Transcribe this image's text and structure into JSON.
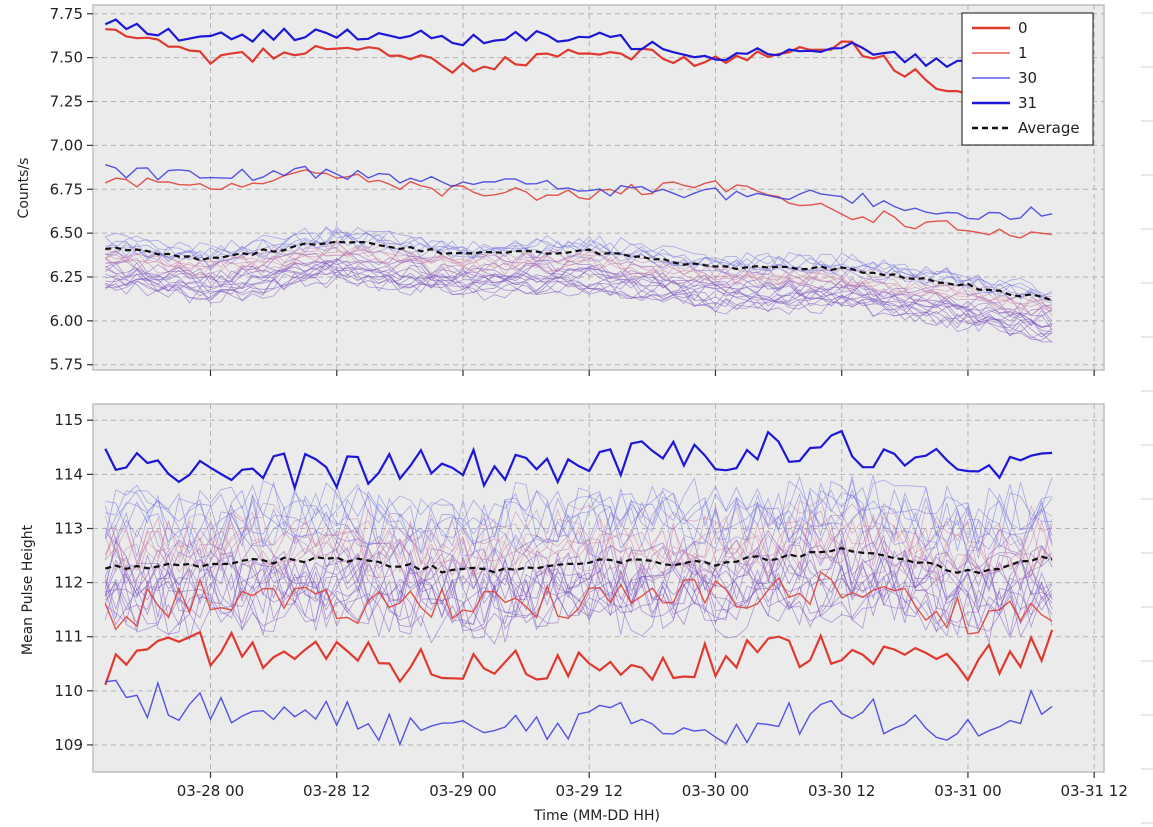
{
  "chart_data": [
    {
      "type": "line",
      "panel": "top",
      "title": "",
      "xlabel": "",
      "ylabel": "Counts/s",
      "ylim": [
        5.72,
        7.8
      ],
      "yticks": [
        5.75,
        6.0,
        6.25,
        6.5,
        6.75,
        7.0,
        7.25,
        7.5,
        7.75
      ],
      "ytick_labels": [
        "5.75",
        "6.00",
        "6.25",
        "6.50",
        "6.75",
        "7.00",
        "7.25",
        "7.50",
        "7.75"
      ],
      "grid": true,
      "legend_position": "top-right",
      "legend": [
        "0",
        "1",
        "30",
        "31",
        "Average"
      ],
      "x_sample_times": [
        "03-27 14:00",
        "03-28 00:00",
        "03-28 12:00",
        "03-29 00:00",
        "03-29 12:00",
        "03-30 00:00",
        "03-30 12:00",
        "03-31 00:00",
        "03-31 08:00"
      ],
      "series": [
        {
          "name": "0",
          "color": "#e03a30",
          "width": "thick",
          "values": [
            7.65,
            7.48,
            7.58,
            7.44,
            7.55,
            7.48,
            7.58,
            7.28,
            7.41
          ]
        },
        {
          "name": "1",
          "color": "#e03a30",
          "width": "thin",
          "values": [
            6.78,
            6.77,
            6.84,
            6.73,
            6.72,
            6.77,
            6.62,
            6.52,
            6.47
          ]
        },
        {
          "name": "30",
          "color": "#3a38e0",
          "width": "thin",
          "values": [
            6.85,
            6.82,
            6.85,
            6.8,
            6.75,
            6.72,
            6.71,
            6.6,
            6.63
          ]
        },
        {
          "name": "31",
          "color": "#1f17d8",
          "width": "thick",
          "values": [
            7.7,
            7.6,
            7.65,
            7.6,
            7.62,
            7.52,
            7.57,
            7.45,
            7.52
          ]
        },
        {
          "name": "Average",
          "color": "#111111",
          "width": "dashed",
          "values": [
            6.42,
            6.35,
            6.46,
            6.38,
            6.4,
            6.3,
            6.3,
            6.2,
            6.12
          ]
        }
      ]
    },
    {
      "type": "line",
      "panel": "bottom",
      "title": "",
      "xlabel": "Time (MM-DD HH)",
      "ylabel": "Mean Pulse Height",
      "ylim": [
        108.5,
        115.3
      ],
      "yticks": [
        109,
        110,
        111,
        112,
        113,
        114,
        115
      ],
      "ytick_labels": [
        "109",
        "110",
        "111",
        "112",
        "113",
        "114",
        "115"
      ],
      "xticks": [
        "03-28 00",
        "03-28 12",
        "03-29 00",
        "03-29 12",
        "03-30 00",
        "03-30 12",
        "03-31 00",
        "03-31 12"
      ],
      "grid": true,
      "x_sample_times": [
        "03-27 14:00",
        "03-28 00:00",
        "03-28 12:00",
        "03-29 00:00",
        "03-29 12:00",
        "03-30 00:00",
        "03-30 12:00",
        "03-31 00:00",
        "03-31 08:00"
      ],
      "series": [
        {
          "name": "0",
          "color": "#e03a30",
          "width": "thick",
          "values": [
            110.4,
            110.8,
            110.6,
            110.4,
            110.5,
            110.6,
            110.8,
            110.4,
            110.8
          ]
        },
        {
          "name": "1",
          "color": "#e03a30",
          "width": "thin",
          "values": [
            111.4,
            111.8,
            111.5,
            111.7,
            111.6,
            111.8,
            111.9,
            111.4,
            111.5
          ]
        },
        {
          "name": "30",
          "color": "#3a38e0",
          "width": "thin",
          "values": [
            110.0,
            109.6,
            109.5,
            109.2,
            109.5,
            109.3,
            109.6,
            109.4,
            109.8
          ]
        },
        {
          "name": "31",
          "color": "#1f17d8",
          "width": "thick",
          "values": [
            114.4,
            114.0,
            114.1,
            114.1,
            114.2,
            114.4,
            114.5,
            114.0,
            114.15
          ]
        },
        {
          "name": "Average",
          "color": "#111111",
          "width": "dashed",
          "values": [
            112.3,
            112.35,
            112.45,
            112.2,
            112.4,
            112.35,
            112.6,
            112.2,
            112.45
          ]
        }
      ]
    }
  ],
  "colors": {
    "axes_bg": "#ebebeb",
    "spine": "#bfbfbf",
    "grid": "#b0b0b0",
    "red": "#e03a30",
    "blue": "#1f17d8",
    "purple": "#8a5ab0"
  },
  "texts": {
    "top_ylabel": "Counts/s",
    "bottom_ylabel": "Mean Pulse Height",
    "xlabel": "Time (MM-DD HH)"
  }
}
